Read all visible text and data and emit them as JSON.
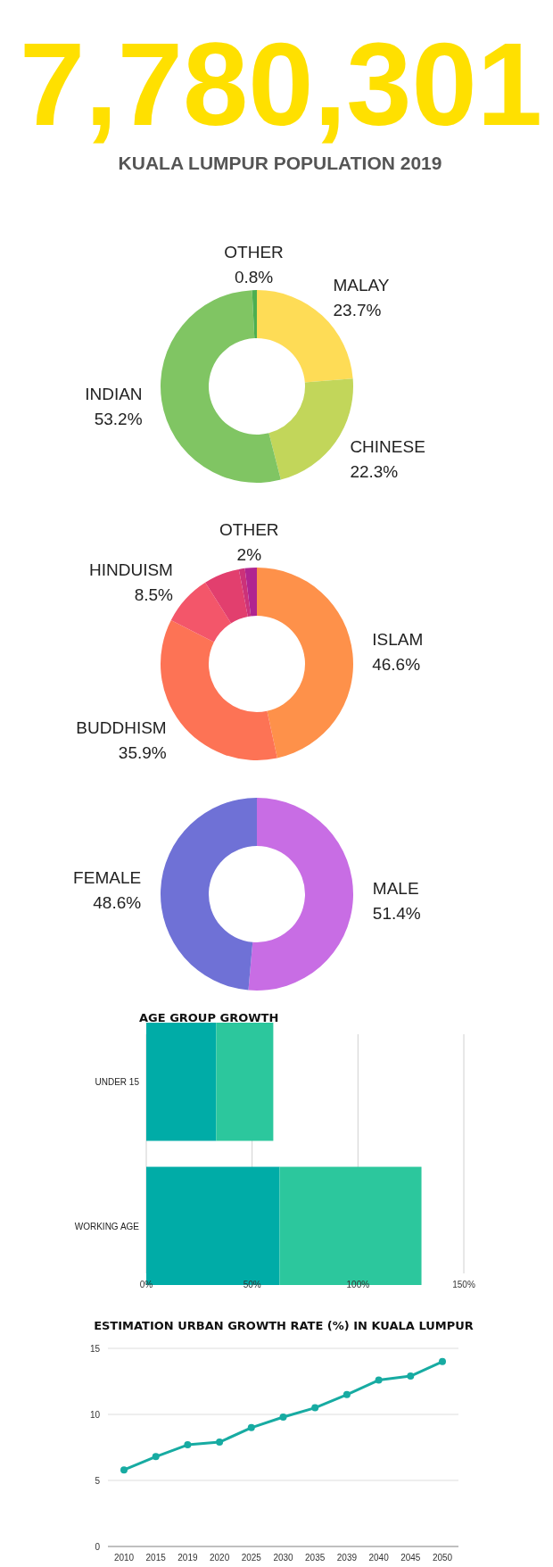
{
  "chart_data": [
    {
      "type": "other",
      "title": "7,780,301",
      "subtitle": "KUALA LUMPUR POPULATION 2019"
    },
    {
      "type": "donut",
      "categories": [
        "MALAY",
        "CHINESE",
        "INDIAN",
        "OTHER"
      ],
      "values": [
        23.7,
        22.3,
        53.2,
        0.8
      ],
      "value_labels": [
        "23.7%",
        "22.3%",
        "53.2%",
        "0.8%"
      ],
      "colors": [
        "#fedc56",
        "#c2d65a",
        "#80c563",
        "#4caf50"
      ],
      "legend": false
    },
    {
      "type": "donut",
      "categories": [
        "ISLAM",
        "BUDDHISM",
        "HINDUISM",
        null,
        null,
        "OTHER"
      ],
      "values": [
        46.6,
        35.9,
        8.5,
        6,
        1,
        2
      ],
      "value_labels": [
        "46.6%",
        "35.9%",
        "8.5%",
        null,
        null,
        "2%"
      ],
      "colors": [
        "#fe914a",
        "#fd7355",
        "#f3566a",
        "#e23f6e",
        "#cc3279",
        "#b02590"
      ],
      "legend": false
    },
    {
      "type": "donut",
      "categories": [
        "MALE",
        "FEMALE"
      ],
      "values": [
        51.4,
        48.6
      ],
      "value_labels": [
        "51.4%",
        "48.6%"
      ],
      "colors": [
        "#c86de4",
        "#6f71d6"
      ],
      "legend": false
    },
    {
      "type": "bar",
      "title": "AGE GROUP GROWTH",
      "orientation": "horizontal",
      "stacked": true,
      "categories": [
        "UNDER 15",
        "WORKING AGE"
      ],
      "series": [
        {
          "color": "#00aca7",
          "values": [
            33,
            63
          ]
        },
        {
          "color": "#2cc79d",
          "values": [
            27,
            67
          ]
        }
      ],
      "xlim": [
        0,
        150
      ],
      "xticks": [
        {
          "value": 0,
          "label": "0%"
        },
        {
          "value": 50,
          "label": "50%"
        },
        {
          "value": 100,
          "label": "100%"
        },
        {
          "value": 150,
          "label": "150%"
        }
      ],
      "grid": "x"
    },
    {
      "type": "line",
      "title": "ESTIMATION URBAN GROWTH RATE (%) IN KUALA LUMPUR",
      "categories": [
        "2010",
        "2015",
        "2019",
        "2020",
        "2025",
        "2030",
        "2035",
        "2039",
        "2040",
        "2045",
        "2050"
      ],
      "series": [
        {
          "color": "#17aba2",
          "values": [
            5.8,
            6.8,
            7.7,
            7.9,
            9.0,
            9.8,
            10.5,
            11.5,
            12.6,
            12.9,
            14.0
          ]
        }
      ],
      "ylim": [
        0,
        15
      ],
      "yticks": [
        0,
        5,
        10,
        15
      ],
      "grid": "y",
      "marker": "circle",
      "line_style": "solid"
    }
  ]
}
